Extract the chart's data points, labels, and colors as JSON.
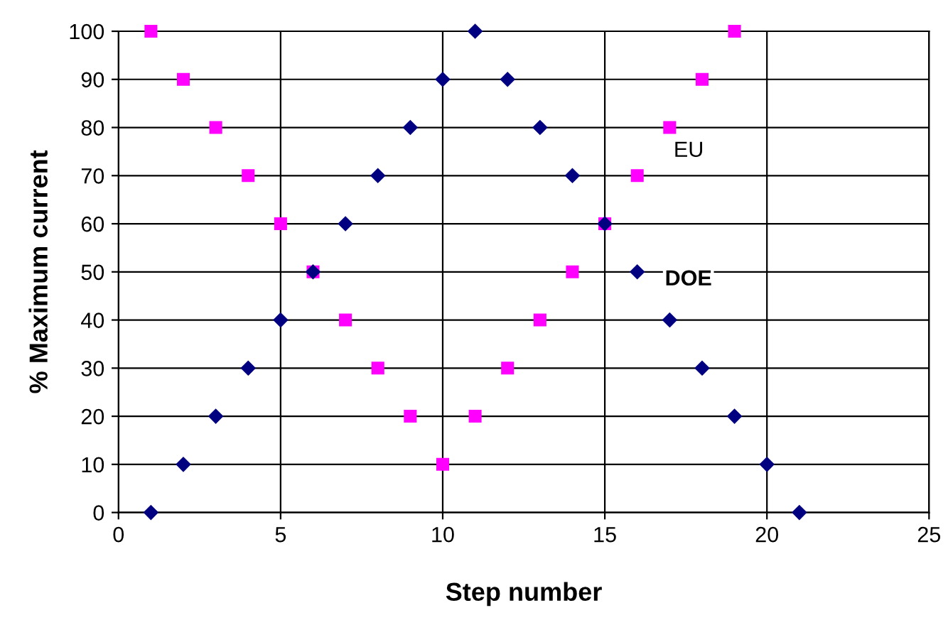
{
  "chart_data": {
    "type": "scatter",
    "xlabel": "Step number",
    "ylabel": "% Maximum current",
    "xlim": [
      0,
      25
    ],
    "xticks": [
      0,
      5,
      10,
      15,
      20,
      25
    ],
    "ylim": [
      0,
      100
    ],
    "yticks": [
      0,
      10,
      20,
      30,
      40,
      50,
      60,
      70,
      80,
      90,
      100
    ],
    "grid": true,
    "legend": false,
    "series": [
      {
        "name": "DOE",
        "color": "#000080",
        "marker": "diamond",
        "x": [
          1,
          2,
          3,
          4,
          5,
          6,
          7,
          8,
          9,
          10,
          11,
          12,
          13,
          14,
          15,
          16,
          17,
          18,
          19,
          20,
          21
        ],
        "values": [
          0,
          10,
          20,
          30,
          40,
          50,
          60,
          70,
          80,
          90,
          100,
          90,
          80,
          70,
          60,
          50,
          40,
          30,
          20,
          10,
          0
        ]
      },
      {
        "name": "EU",
        "color": "#ff00ff",
        "marker": "square",
        "x": [
          1,
          2,
          3,
          4,
          5,
          6,
          7,
          8,
          9,
          10,
          11,
          12,
          13,
          14,
          15,
          16,
          17,
          18,
          19
        ],
        "values": [
          100,
          90,
          80,
          70,
          60,
          50,
          40,
          30,
          20,
          10,
          20,
          30,
          40,
          50,
          60,
          70,
          80,
          90,
          100
        ]
      }
    ]
  }
}
